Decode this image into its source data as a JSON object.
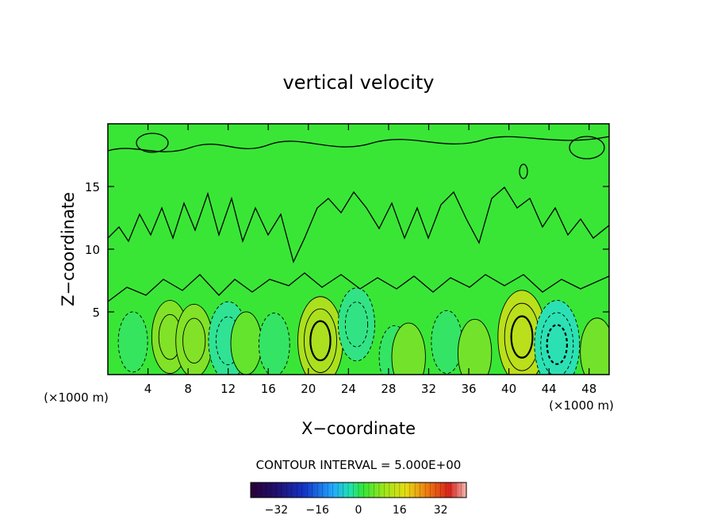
{
  "chart_data": {
    "type": "heatmap",
    "title": "vertical velocity",
    "xlabel": "X−coordinate",
    "ylabel": "Z−coordinate",
    "x_unit": "(×1000 m)",
    "y_unit": "(×1000 m)",
    "xlim": [
      0,
      50
    ],
    "ylim": [
      0,
      20
    ],
    "x_ticks": [
      4,
      8,
      12,
      16,
      20,
      24,
      28,
      32,
      36,
      40,
      44,
      48
    ],
    "y_ticks": [
      5,
      10,
      15
    ],
    "contour_interval_text": "CONTOUR INTERVAL = 5.000E+00",
    "colorbar": {
      "min": -42,
      "max": 42,
      "ticks": [
        -32,
        -16,
        0,
        16,
        32
      ],
      "tick_labels": [
        "−32",
        "−16",
        "0",
        "16",
        "32"
      ]
    },
    "features": [
      {
        "x": 2.5,
        "z": 2.6,
        "w": -5
      },
      {
        "x": 6.2,
        "z": 3.0,
        "w": 10
      },
      {
        "x": 8.6,
        "z": 2.7,
        "w": 10
      },
      {
        "x": 12.0,
        "z": 2.7,
        "w": -12
      },
      {
        "x": 13.8,
        "z": 2.5,
        "w": 6
      },
      {
        "x": 16.6,
        "z": 2.4,
        "w": -6
      },
      {
        "x": 21.2,
        "z": 2.7,
        "w": 16
      },
      {
        "x": 24.8,
        "z": 4.0,
        "w": -10
      },
      {
        "x": 28.6,
        "z": 1.4,
        "w": -6
      },
      {
        "x": 30.0,
        "z": 1.4,
        "w": 8
      },
      {
        "x": 33.8,
        "z": 2.6,
        "w": -6
      },
      {
        "x": 36.6,
        "z": 1.7,
        "w": 8
      },
      {
        "x": 41.3,
        "z": 3.0,
        "w": 18
      },
      {
        "x": 44.8,
        "z": 2.4,
        "w": -16
      },
      {
        "x": 48.8,
        "z": 1.8,
        "w": 8
      }
    ]
  }
}
